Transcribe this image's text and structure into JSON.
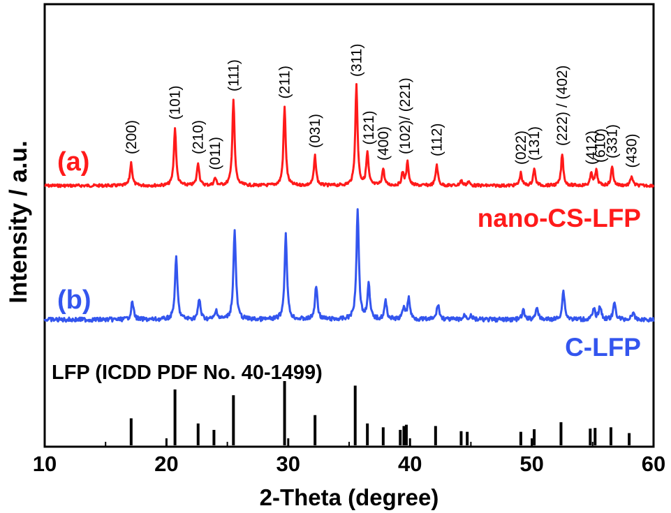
{
  "chart_data": {
    "type": "line",
    "xlabel": "2-Theta (degree)",
    "ylabel": "Intensity / a.u.",
    "xlim": [
      10,
      60
    ],
    "xticks": [
      10,
      20,
      30,
      40,
      50,
      60
    ],
    "grid": false,
    "colors": {
      "a": "#ff1a1a",
      "b": "#3355ee",
      "ref": "#000000"
    },
    "series": [
      {
        "name": "nano-CS-LFP",
        "tag": "(a)",
        "peaks": [
          [
            17.1,
            0.22
          ],
          [
            20.7,
            0.55
          ],
          [
            22.6,
            0.22
          ],
          [
            24.0,
            0.07
          ],
          [
            25.5,
            0.82
          ],
          [
            29.7,
            0.75
          ],
          [
            32.2,
            0.28
          ],
          [
            35.6,
            0.96
          ],
          [
            36.5,
            0.31
          ],
          [
            37.8,
            0.16
          ],
          [
            39.4,
            0.12
          ],
          [
            39.8,
            0.22
          ],
          [
            42.2,
            0.2
          ],
          [
            44.2,
            0.05
          ],
          [
            44.8,
            0.04
          ],
          [
            49.1,
            0.12
          ],
          [
            50.2,
            0.16
          ],
          [
            52.5,
            0.3
          ],
          [
            54.9,
            0.12
          ],
          [
            55.3,
            0.14
          ],
          [
            56.6,
            0.18
          ],
          [
            58.2,
            0.09
          ]
        ]
      },
      {
        "name": "C-LFP",
        "tag": "(b)",
        "peaks": [
          [
            17.2,
            0.16
          ],
          [
            20.8,
            0.55
          ],
          [
            22.7,
            0.18
          ],
          [
            24.1,
            0.08
          ],
          [
            25.6,
            0.8
          ],
          [
            29.8,
            0.76
          ],
          [
            32.3,
            0.3
          ],
          [
            35.7,
            0.98
          ],
          [
            36.6,
            0.31
          ],
          [
            38.0,
            0.16
          ],
          [
            39.5,
            0.11
          ],
          [
            39.9,
            0.19
          ],
          [
            42.3,
            0.14
          ],
          [
            44.5,
            0.04
          ],
          [
            45.0,
            0.04
          ],
          [
            49.3,
            0.08
          ],
          [
            50.4,
            0.11
          ],
          [
            52.6,
            0.26
          ],
          [
            55.1,
            0.09
          ],
          [
            55.6,
            0.12
          ],
          [
            56.8,
            0.15
          ],
          [
            58.3,
            0.06
          ]
        ]
      }
    ],
    "reference": {
      "label": "LFP (ICDD PDF No. 40-1499)",
      "lines": [
        [
          17.1,
          0.42
        ],
        [
          20.7,
          0.87
        ],
        [
          22.6,
          0.34
        ],
        [
          23.9,
          0.24
        ],
        [
          25.5,
          0.78
        ],
        [
          29.7,
          1.0
        ],
        [
          32.2,
          0.47
        ],
        [
          35.5,
          0.93
        ],
        [
          36.5,
          0.34
        ],
        [
          37.8,
          0.28
        ],
        [
          39.2,
          0.24
        ],
        [
          39.5,
          0.3
        ],
        [
          39.7,
          0.32
        ],
        [
          42.1,
          0.3
        ],
        [
          44.2,
          0.22
        ],
        [
          44.7,
          0.21
        ],
        [
          49.1,
          0.21
        ],
        [
          50.2,
          0.25
        ],
        [
          52.4,
          0.36
        ],
        [
          54.8,
          0.26
        ],
        [
          55.2,
          0.27
        ],
        [
          56.5,
          0.28
        ],
        [
          58.0,
          0.19
        ]
      ]
    },
    "annotations": [
      {
        "text": "(200)",
        "x": 17.1
      },
      {
        "text": "(101)",
        "x": 20.7
      },
      {
        "text": "(210)",
        "x": 22.6
      },
      {
        "text": "(011)",
        "x": 24.0
      },
      {
        "text": "(111)",
        "x": 25.5
      },
      {
        "text": "(211)",
        "x": 29.7
      },
      {
        "text": "(031)",
        "x": 32.2
      },
      {
        "text": "(311)",
        "x": 35.6
      },
      {
        "text": "(121)",
        "x": 36.6
      },
      {
        "text": "(400)",
        "x": 37.8
      },
      {
        "text": "(102)/ (221)",
        "x": 39.6
      },
      {
        "text": "(112)",
        "x": 42.2
      },
      {
        "text": "(022)",
        "x": 49.1
      },
      {
        "text": "(131)",
        "x": 50.2
      },
      {
        "text": "(222) / (402)",
        "x": 52.5
      },
      {
        "text": "(412)",
        "x": 54.9
      },
      {
        "text": "(610)",
        "x": 55.6
      },
      {
        "text": "(331)",
        "x": 56.6
      },
      {
        "text": "(430)",
        "x": 58.2
      }
    ]
  }
}
